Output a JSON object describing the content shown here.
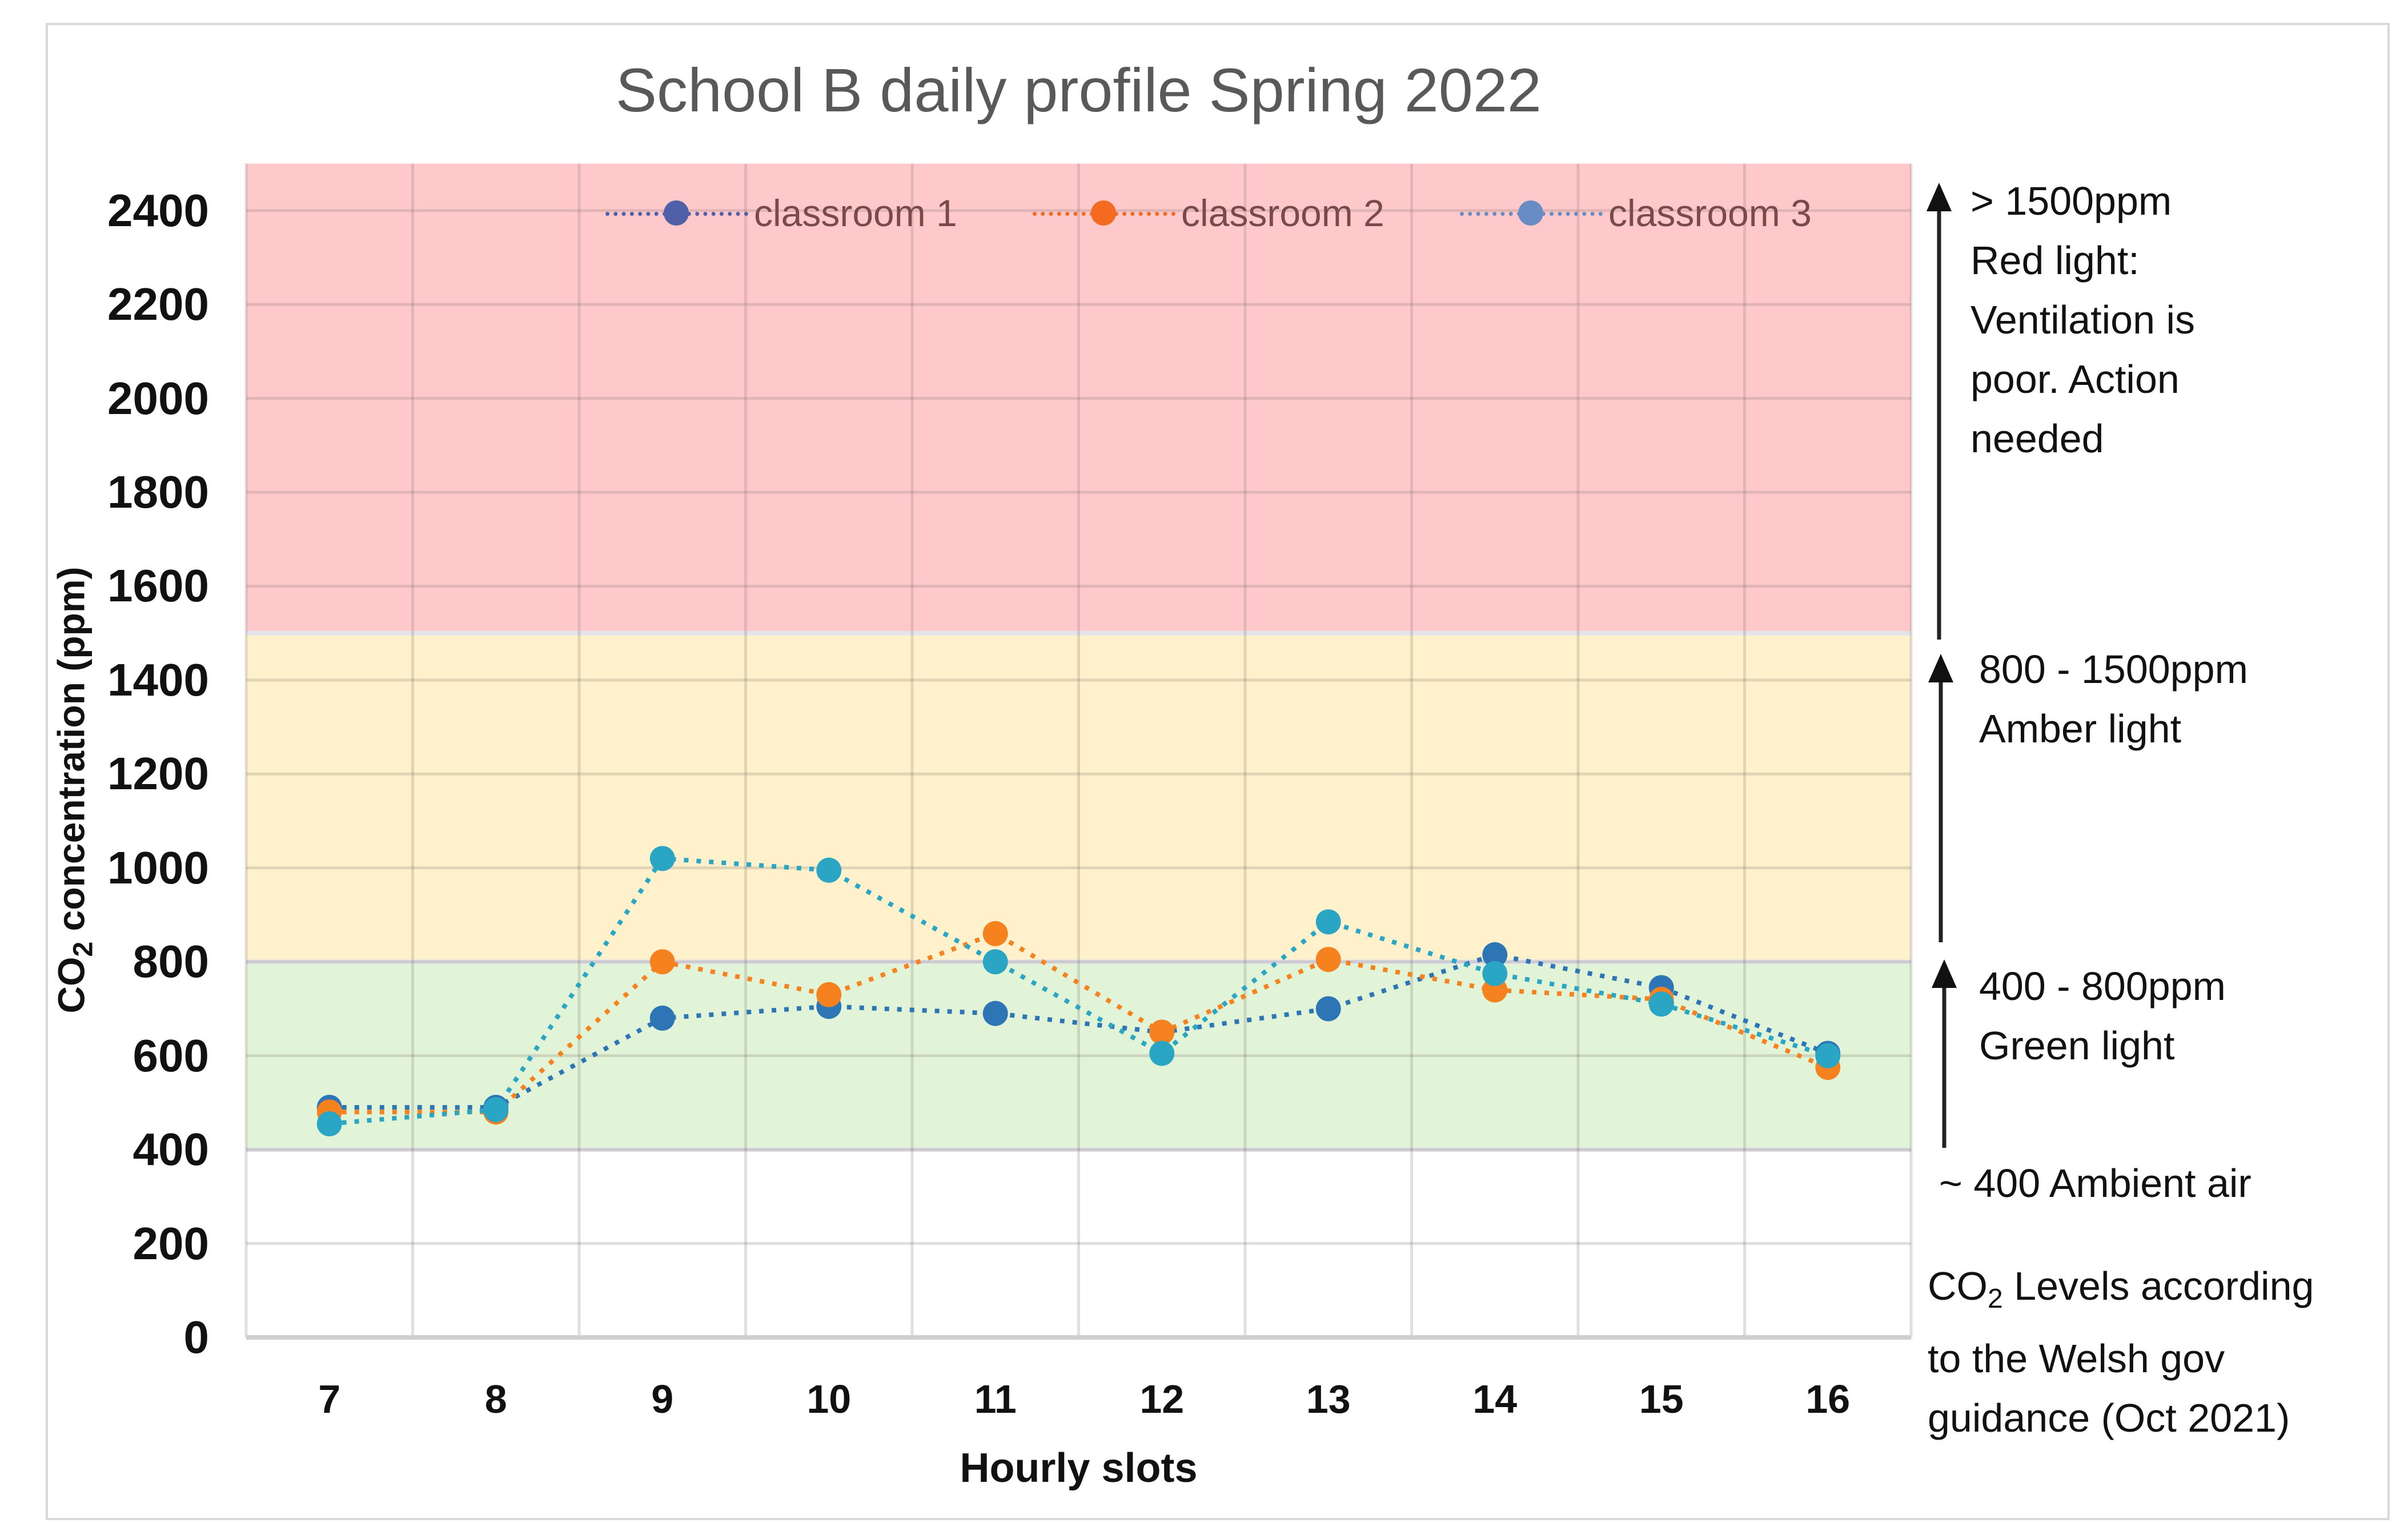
{
  "chart_data": {
    "type": "line",
    "title": "School B daily profile Spring 2022",
    "xlabel": "Hourly slots",
    "ylabel": "CO2 concentration (ppm)",
    "ylabel_parts": {
      "co": "CO",
      "sub": "2",
      "rest": " concentration (ppm)"
    },
    "categories": [
      "7",
      "8",
      "9",
      "10",
      "11",
      "12",
      "13",
      "14",
      "15",
      "16"
    ],
    "ylim": [
      0,
      2500
    ],
    "yticks": [
      0,
      200,
      400,
      600,
      800,
      1000,
      1200,
      1400,
      1600,
      1800,
      2000,
      2200,
      2400
    ],
    "grid": true,
    "legend_position": "top-inside",
    "series": [
      {
        "name": "classroom 1",
        "color": "#2E75B6",
        "legend_color": "#4F5FA8",
        "line_style": "dotted",
        "values": [
          490,
          490,
          680,
          705,
          690,
          650,
          700,
          815,
          745,
          605
        ]
      },
      {
        "name": "classroom 2",
        "color": "#F5821F",
        "legend_color": "#F46A1F",
        "line_style": "dotted",
        "values": [
          480,
          480,
          800,
          730,
          860,
          650,
          805,
          740,
          720,
          575
        ]
      },
      {
        "name": "classroom 3",
        "color": "#2AA5C4",
        "legend_color": "#6A8CC4",
        "line_style": "dotted",
        "values": [
          455,
          485,
          1020,
          995,
          800,
          605,
          885,
          775,
          710,
          600
        ]
      }
    ],
    "bands": [
      {
        "name": "red",
        "from": 1500,
        "to": 2500,
        "color": "#FFC9CC"
      },
      {
        "name": "amber",
        "from": 800,
        "to": 1500,
        "color": "#FFF1CC"
      },
      {
        "name": "green",
        "from": 400,
        "to": 800,
        "color": "#E2F4D8"
      }
    ],
    "annotations": [
      {
        "id": "red",
        "lines": [
          "> 1500ppm",
          "Red light:",
          "Ventilation is",
          "poor. Action",
          "needed"
        ]
      },
      {
        "id": "amber",
        "lines": [
          "800 - 1500ppm",
          "Amber light"
        ]
      },
      {
        "id": "green",
        "lines": [
          "400 - 800ppm",
          "Green light"
        ]
      },
      {
        "id": "ambient",
        "lines": [
          "~ 400 Ambient air"
        ]
      },
      {
        "id": "source",
        "lines": [
          "CO2 Levels according",
          "to the Welsh gov",
          "guidance (Oct 2021)"
        ]
      }
    ]
  },
  "labels": {
    "title": "School B daily profile Spring 2022",
    "xaxis_title": "Hourly slots",
    "yaxis_title_co": "CO",
    "yaxis_title_sub": "2",
    "yaxis_title_rest": " concentration (ppm)",
    "legend": [
      "classroom 1",
      "classroom 2",
      "classroom 3"
    ],
    "note_red": [
      "> 1500ppm",
      "Red light:",
      "Ventilation is",
      "poor. Action",
      "needed"
    ],
    "note_amber": [
      "800 - 1500ppm",
      "Amber light"
    ],
    "note_green": [
      "400 - 800ppm",
      "Green light"
    ],
    "note_ambient": "~ 400 Ambient air",
    "note_source_co": "CO",
    "note_source_sub": "2",
    "note_source_line1_rest": " Levels according",
    "note_source_line2": "to the Welsh gov",
    "note_source_line3": "guidance (Oct 2021)"
  }
}
